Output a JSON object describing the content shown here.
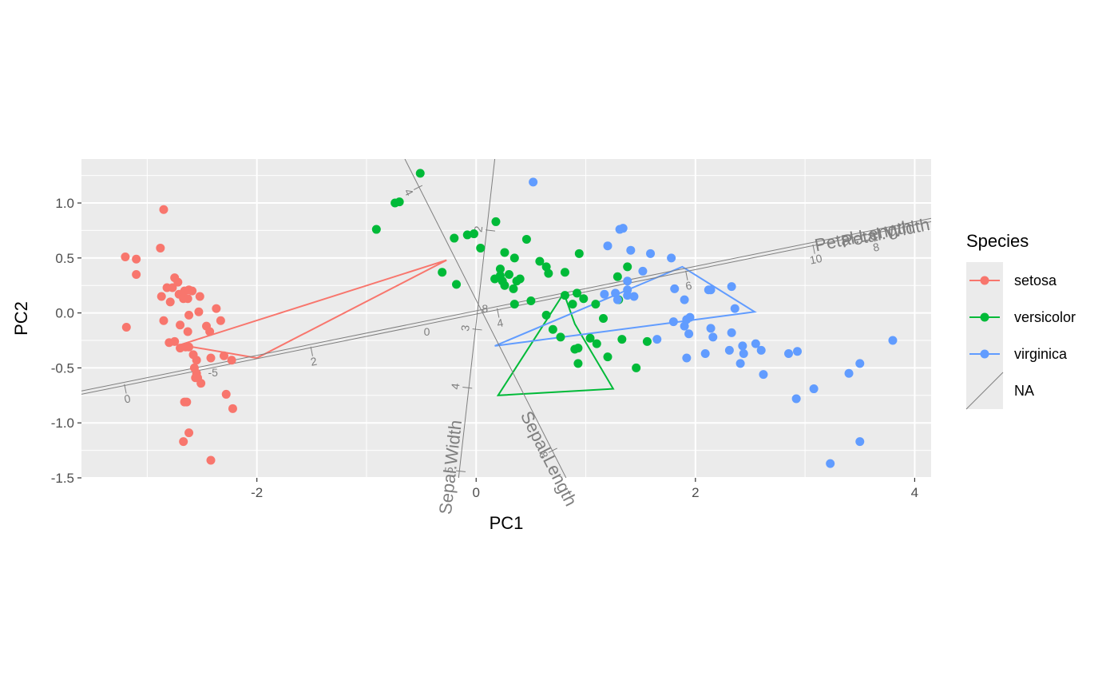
{
  "chart_data": {
    "type": "scatter",
    "xlabel": "PC1",
    "ylabel": "PC2",
    "xlim": [
      -3.6,
      4.15
    ],
    "ylim": [
      -1.5,
      1.4
    ],
    "x_ticks": [
      -2,
      0,
      2,
      4
    ],
    "x_tick_labels": [
      "-2",
      "0",
      "2",
      "4"
    ],
    "y_ticks": [
      -1.5,
      -1.0,
      -0.5,
      0.0,
      0.5,
      1.0
    ],
    "y_tick_labels": [
      "-1.5",
      "-1.0",
      "-0.5",
      "0.0",
      "0.5",
      "1.0"
    ],
    "grid": true,
    "legend": {
      "title": "Species",
      "position": "right",
      "entries": [
        "setosa",
        "versicolor",
        "virginica",
        "NA"
      ]
    },
    "colors": {
      "setosa": "#F8766D",
      "versicolor": "#00BA38",
      "virginica": "#619CFF",
      "calibration_axes": "#7f7f7f"
    },
    "series": [
      {
        "name": "setosa",
        "points": [
          [
            -3.2,
            0.51
          ],
          [
            -3.19,
            -0.13
          ],
          [
            -3.1,
            0.49
          ],
          [
            -3.1,
            0.35
          ],
          [
            -2.85,
            0.94
          ],
          [
            -2.88,
            0.59
          ],
          [
            -2.87,
            0.15
          ],
          [
            -2.85,
            -0.07
          ],
          [
            -2.82,
            0.23
          ],
          [
            -2.79,
            0.1
          ],
          [
            -2.77,
            0.23
          ],
          [
            -2.8,
            -0.27
          ],
          [
            -2.75,
            -0.26
          ],
          [
            -2.75,
            0.32
          ],
          [
            -2.72,
            0.28
          ],
          [
            -2.71,
            0.17
          ],
          [
            -2.7,
            -0.32
          ],
          [
            -2.7,
            -0.11
          ],
          [
            -2.67,
            0.13
          ],
          [
            -2.66,
            0.2
          ],
          [
            -2.65,
            -0.31
          ],
          [
            -2.63,
            0.13
          ],
          [
            -2.62,
            0.21
          ],
          [
            -2.63,
            -0.17
          ],
          [
            -2.62,
            -0.02
          ],
          [
            -2.62,
            -0.31
          ],
          [
            -2.59,
            0.2
          ],
          [
            -2.58,
            -0.38
          ],
          [
            -2.57,
            -0.5
          ],
          [
            -2.55,
            -0.43
          ],
          [
            -2.55,
            -0.55
          ],
          [
            -2.53,
            0.01
          ],
          [
            -2.52,
            0.15
          ],
          [
            -2.51,
            -0.64
          ],
          [
            -2.54,
            -0.59
          ],
          [
            -2.56,
            -0.59
          ],
          [
            -2.46,
            -0.12
          ],
          [
            -2.43,
            -0.17
          ],
          [
            -2.37,
            0.04
          ],
          [
            -2.33,
            -0.07
          ],
          [
            -2.42,
            -0.41
          ],
          [
            -2.3,
            -0.39
          ],
          [
            -2.23,
            -0.43
          ],
          [
            -2.28,
            -0.74
          ],
          [
            -2.22,
            -0.87
          ],
          [
            -2.66,
            -0.81
          ],
          [
            -2.64,
            -0.81
          ],
          [
            -2.67,
            -1.17
          ],
          [
            -2.62,
            -1.09
          ],
          [
            -2.42,
            -1.34
          ]
        ]
      },
      {
        "name": "versicolor",
        "points": [
          [
            -0.91,
            0.76
          ],
          [
            -0.74,
            1.0
          ],
          [
            -0.7,
            1.01
          ],
          [
            -0.51,
            1.27
          ],
          [
            -0.31,
            0.37
          ],
          [
            -0.2,
            0.68
          ],
          [
            -0.18,
            0.26
          ],
          [
            -0.08,
            0.71
          ],
          [
            -0.02,
            0.72
          ],
          [
            0.04,
            0.59
          ],
          [
            0.17,
            0.31
          ],
          [
            0.18,
            0.83
          ],
          [
            0.22,
            0.4
          ],
          [
            0.22,
            0.34
          ],
          [
            0.24,
            0.29
          ],
          [
            0.26,
            0.55
          ],
          [
            0.26,
            0.25
          ],
          [
            0.3,
            0.35
          ],
          [
            0.34,
            0.22
          ],
          [
            0.35,
            0.5
          ],
          [
            0.37,
            0.29
          ],
          [
            0.35,
            0.08
          ],
          [
            0.4,
            0.31
          ],
          [
            0.46,
            0.67
          ],
          [
            0.5,
            0.11
          ],
          [
            0.58,
            0.47
          ],
          [
            0.64,
            0.42
          ],
          [
            0.66,
            0.36
          ],
          [
            0.64,
            -0.02
          ],
          [
            0.7,
            -0.15
          ],
          [
            0.77,
            -0.22
          ],
          [
            0.81,
            0.37
          ],
          [
            0.81,
            0.16
          ],
          [
            0.88,
            0.08
          ],
          [
            0.9,
            -0.33
          ],
          [
            0.92,
            0.18
          ],
          [
            0.93,
            -0.32
          ],
          [
            0.94,
            0.54
          ],
          [
            0.98,
            0.13
          ],
          [
            1.04,
            -0.23
          ],
          [
            1.09,
            0.08
          ],
          [
            1.1,
            -0.28
          ],
          [
            1.16,
            -0.05
          ],
          [
            1.2,
            -0.4
          ],
          [
            1.29,
            0.33
          ],
          [
            1.3,
            0.12
          ],
          [
            1.33,
            -0.24
          ],
          [
            1.38,
            0.42
          ],
          [
            1.46,
            -0.5
          ],
          [
            1.56,
            -0.26
          ],
          [
            0.93,
            -0.46
          ]
        ]
      },
      {
        "name": "virginica",
        "points": [
          [
            0.52,
            1.19
          ],
          [
            1.2,
            0.61
          ],
          [
            1.17,
            0.17
          ],
          [
            1.27,
            0.18
          ],
          [
            1.29,
            0.12
          ],
          [
            1.31,
            0.76
          ],
          [
            1.34,
            0.77
          ],
          [
            1.38,
            0.29
          ],
          [
            1.38,
            0.21
          ],
          [
            1.38,
            0.16
          ],
          [
            1.41,
            0.57
          ],
          [
            1.44,
            0.15
          ],
          [
            1.52,
            0.38
          ],
          [
            1.59,
            0.54
          ],
          [
            1.65,
            -0.24
          ],
          [
            1.78,
            0.5
          ],
          [
            1.8,
            -0.08
          ],
          [
            1.81,
            0.22
          ],
          [
            1.9,
            0.12
          ],
          [
            1.9,
            -0.12
          ],
          [
            1.92,
            -0.06
          ],
          [
            1.92,
            -0.41
          ],
          [
            1.94,
            -0.19
          ],
          [
            1.95,
            -0.04
          ],
          [
            2.09,
            -0.37
          ],
          [
            2.12,
            0.21
          ],
          [
            2.14,
            0.21
          ],
          [
            2.14,
            -0.14
          ],
          [
            2.16,
            -0.22
          ],
          [
            2.31,
            -0.34
          ],
          [
            2.33,
            -0.18
          ],
          [
            2.33,
            0.24
          ],
          [
            2.36,
            0.04
          ],
          [
            2.41,
            -0.46
          ],
          [
            2.43,
            -0.3
          ],
          [
            2.44,
            -0.37
          ],
          [
            2.55,
            -0.28
          ],
          [
            2.6,
            -0.34
          ],
          [
            2.62,
            -0.56
          ],
          [
            2.85,
            -0.37
          ],
          [
            2.92,
            -0.78
          ],
          [
            2.93,
            -0.35
          ],
          [
            3.08,
            -0.69
          ],
          [
            3.4,
            -0.55
          ],
          [
            3.5,
            -0.46
          ],
          [
            3.5,
            -1.17
          ],
          [
            3.8,
            -0.25
          ],
          [
            3.23,
            -1.37
          ]
        ]
      }
    ],
    "hulls": [
      {
        "name": "setosa",
        "points": [
          [
            -0.27,
            0.48
          ],
          [
            -2.7,
            -0.29
          ],
          [
            -2.0,
            -0.41
          ]
        ]
      },
      {
        "name": "versicolor",
        "points": [
          [
            0.8,
            0.18
          ],
          [
            0.9,
            -0.1
          ],
          [
            1.25,
            -0.69
          ],
          [
            0.2,
            -0.75
          ]
        ]
      },
      {
        "name": "virginica",
        "points": [
          [
            1.88,
            0.42
          ],
          [
            2.54,
            0.01
          ],
          [
            0.17,
            -0.3
          ]
        ]
      }
    ],
    "calibration_axes": [
      {
        "name": "Petal.Width",
        "label": "Petal.Width",
        "start": [
          -3.6,
          -0.71
        ],
        "end": [
          4.15,
          0.86
        ],
        "ticks": []
      },
      {
        "name": "Petal.Length",
        "label": "Petal.Length",
        "start": [
          -3.6,
          -0.74
        ],
        "end": [
          4.15,
          0.83
        ],
        "ticks": [
          {
            "label": "0",
            "at": [
              -3.2,
              -0.69
            ]
          },
          {
            "label": "2",
            "at": [
              -1.5,
              -0.35
            ]
          },
          {
            "label": "4",
            "at": [
              0.2,
              0.0
            ]
          },
          {
            "label": "6",
            "at": [
              1.92,
              0.34
            ]
          },
          {
            "label": "8",
            "at": [
              3.63,
              0.69
            ]
          },
          {
            "label": "10",
            "at": [
              3.08,
              0.58
            ]
          }
        ]
      },
      {
        "name": "Sepal.Length",
        "label": "Sepal.Length",
        "start": [
          -0.65,
          1.4
        ],
        "end": [
          0.82,
          -1.5
        ],
        "ticks": [
          {
            "label": "4",
            "at": [
              -0.53,
              1.14
            ]
          },
          {
            "label": "8",
            "at": [
              0.7,
              -1.25
            ]
          }
        ]
      },
      {
        "name": "Sepal.Width",
        "label": "Sepal.Width",
        "start": [
          0.17,
          1.4
        ],
        "end": [
          -0.16,
          -1.5
        ],
        "ticks": [
          {
            "label": "2",
            "at": [
              0.13,
              0.75
            ]
          },
          {
            "label": "3",
            "at": [
              0.01,
              -0.15
            ]
          },
          {
            "label": "4",
            "at": [
              -0.08,
              -0.68
            ]
          },
          {
            "label": "5",
            "at": [
              -0.14,
              -1.44
            ]
          }
        ]
      }
    ],
    "calibration_tick_labels_extra": [
      {
        "label": "-5",
        "at": [
          -2.4,
          -0.55
        ]
      },
      {
        "label": "8",
        "at": [
          0.08,
          0.03
        ]
      },
      {
        "label": "0",
        "at": [
          -0.45,
          -0.18
        ]
      }
    ]
  }
}
